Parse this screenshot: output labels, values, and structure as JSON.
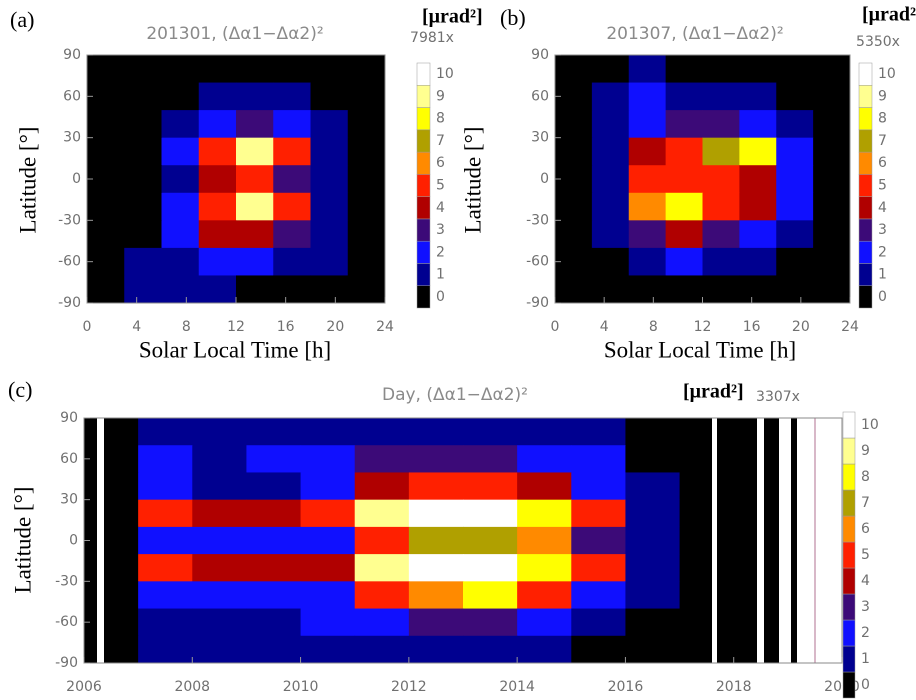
{
  "chart_data": [
    {
      "type": "heatmap",
      "panel": "(a)",
      "title": "201301, (Δα1−Δα2)²",
      "unit": "[μrad²]",
      "note": "7981x",
      "xlabel": "Solar Local Time [h]",
      "ylabel": "Latitude [°]",
      "xlim": [
        0,
        24
      ],
      "xticks": [
        0,
        4,
        8,
        12,
        16,
        20,
        24
      ],
      "ylim": [
        -90,
        90
      ],
      "yticks": [
        -90,
        -60,
        -30,
        0,
        30,
        60,
        90
      ],
      "x": [
        1.5,
        4.5,
        7.5,
        10.5,
        13.5,
        16.5,
        19.5,
        22.5
      ],
      "y": [
        80,
        60,
        40,
        20,
        0,
        -20,
        -40,
        -60,
        -80
      ],
      "z": [
        [
          0,
          0,
          0,
          0,
          0,
          0,
          0,
          0
        ],
        [
          0,
          0,
          0,
          1,
          1,
          1,
          0,
          0
        ],
        [
          0,
          0,
          1,
          2,
          3,
          2,
          1,
          0
        ],
        [
          0,
          0,
          2,
          5,
          9,
          5,
          1,
          0
        ],
        [
          0,
          0,
          1,
          4,
          5,
          3,
          1,
          0
        ],
        [
          0,
          0,
          2,
          5,
          9,
          5,
          1,
          0
        ],
        [
          0,
          0,
          2,
          4,
          4,
          3,
          1,
          0
        ],
        [
          0,
          1,
          1,
          2,
          2,
          1,
          1,
          0
        ],
        [
          0,
          1,
          1,
          1,
          0,
          0,
          0,
          0
        ]
      ],
      "levels": [
        0,
        1,
        2,
        3,
        4,
        5,
        6,
        7,
        8,
        9,
        10
      ],
      "colors": [
        "#000000",
        "#000090",
        "#1010ff",
        "#3c0a78",
        "#b00000",
        "#ff2000",
        "#ff8a00",
        "#b0a000",
        "#ffff00",
        "#ffff90",
        "#ffffff"
      ]
    },
    {
      "type": "heatmap",
      "panel": "(b)",
      "title": "201307, (Δα1−Δα2)²",
      "unit": "[μrad²]",
      "note": "5350x",
      "xlabel": "Solar Local Time [h]",
      "ylabel": "Latitude [°]",
      "xlim": [
        0,
        24
      ],
      "xticks": [
        0,
        4,
        8,
        12,
        16,
        20,
        24
      ],
      "ylim": [
        -90,
        90
      ],
      "yticks": [
        -90,
        -60,
        -30,
        0,
        30,
        60,
        90
      ],
      "x": [
        1.5,
        4.5,
        7.5,
        10.5,
        13.5,
        16.5,
        19.5,
        22.5
      ],
      "y": [
        80,
        60,
        40,
        20,
        0,
        -20,
        -40,
        -60,
        -80
      ],
      "z": [
        [
          0,
          0,
          1,
          0,
          0,
          0,
          0,
          0
        ],
        [
          0,
          1,
          2,
          1,
          1,
          1,
          0,
          0
        ],
        [
          0,
          1,
          2,
          3,
          3,
          2,
          1,
          0
        ],
        [
          0,
          1,
          4,
          5,
          7,
          8,
          2,
          0
        ],
        [
          0,
          1,
          5,
          5,
          5,
          4,
          2,
          0
        ],
        [
          0,
          1,
          6,
          8,
          5,
          4,
          2,
          0
        ],
        [
          0,
          1,
          3,
          4,
          3,
          2,
          1,
          0
        ],
        [
          0,
          0,
          1,
          2,
          1,
          1,
          0,
          0
        ],
        [
          0,
          0,
          0,
          0,
          0,
          0,
          0,
          0
        ]
      ],
      "levels": [
        0,
        1,
        2,
        3,
        4,
        5,
        6,
        7,
        8,
        9,
        10
      ],
      "colors": [
        "#000000",
        "#000090",
        "#1010ff",
        "#3c0a78",
        "#b00000",
        "#ff2000",
        "#ff8a00",
        "#b0a000",
        "#ffff00",
        "#ffff90",
        "#ffffff"
      ]
    },
    {
      "type": "heatmap",
      "panel": "(c)",
      "title": "Day, (Δα1−Δα2)²",
      "unit": "[μrad²]",
      "note": "3307x",
      "ylabel": "Latitude [°]",
      "xlim": [
        2006,
        2020
      ],
      "xticks": [
        2006,
        2008,
        2010,
        2012,
        2014,
        2016,
        2018,
        2020
      ],
      "ylim": [
        -90,
        90
      ],
      "yticks": [
        -90,
        -60,
        -30,
        0,
        30,
        60,
        90
      ],
      "x": [
        2006.5,
        2007.5,
        2008.5,
        2009.5,
        2010.5,
        2011.5,
        2012.5,
        2013.5,
        2014.5,
        2015.5,
        2016.5,
        2017.5,
        2018.5,
        2019.5
      ],
      "y": [
        80,
        60,
        40,
        20,
        0,
        -20,
        -40,
        -60,
        -80
      ],
      "z": [
        [
          0,
          1,
          1,
          1,
          1,
          1,
          1,
          1,
          1,
          1,
          0,
          0,
          0,
          0
        ],
        [
          0,
          2,
          1,
          2,
          2,
          3,
          3,
          3,
          2,
          2,
          0,
          0,
          0,
          0
        ],
        [
          0,
          2,
          1,
          1,
          2,
          4,
          5,
          5,
          4,
          2,
          1,
          0,
          0,
          0
        ],
        [
          0,
          5,
          4,
          4,
          5,
          9,
          10,
          10,
          8,
          5,
          1,
          0,
          0,
          0
        ],
        [
          0,
          2,
          2,
          2,
          2,
          5,
          7,
          7,
          6,
          3,
          1,
          0,
          0,
          0
        ],
        [
          0,
          5,
          4,
          4,
          4,
          9,
          10,
          10,
          8,
          5,
          1,
          0,
          0,
          0
        ],
        [
          0,
          2,
          2,
          2,
          2,
          5,
          6,
          8,
          5,
          2,
          1,
          0,
          0,
          0
        ],
        [
          0,
          1,
          1,
          1,
          2,
          2,
          3,
          3,
          2,
          1,
          0,
          0,
          0,
          0
        ],
        [
          0,
          1,
          1,
          1,
          1,
          1,
          1,
          1,
          1,
          0,
          0,
          0,
          0,
          0
        ]
      ],
      "levels": [
        0,
        1,
        2,
        3,
        4,
        5,
        6,
        7,
        8,
        9,
        10
      ],
      "colors": [
        "#000000",
        "#000090",
        "#1010ff",
        "#3c0a78",
        "#b00000",
        "#ff2000",
        "#ff8a00",
        "#b0a000",
        "#ffff00",
        "#ffff90",
        "#ffffff"
      ]
    }
  ]
}
